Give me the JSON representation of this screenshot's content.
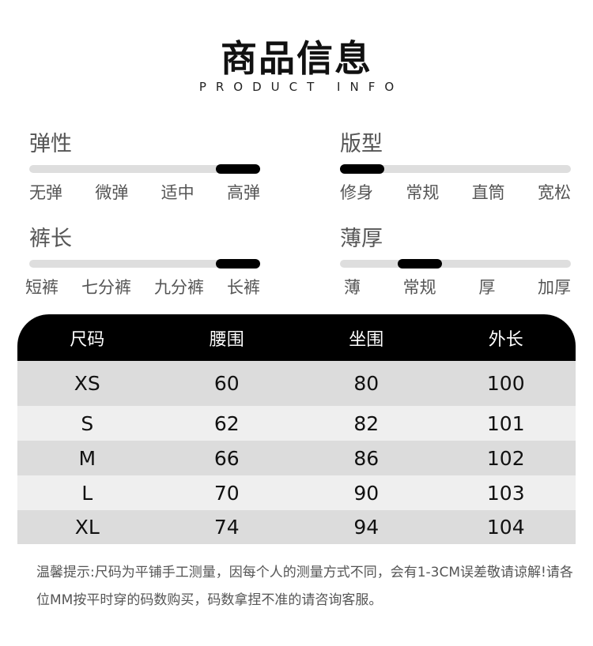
{
  "header": {
    "title": "商品信息",
    "subtitle": "PRODUCT INFO"
  },
  "attributes": [
    {
      "label": "弹性",
      "options": [
        "无弹",
        "微弹",
        "适中",
        "高弹"
      ],
      "selected": 3
    },
    {
      "label": "版型",
      "options": [
        "修身",
        "常规",
        "直筒",
        "宽松"
      ],
      "selected": 0
    },
    {
      "label": "裤长",
      "options": [
        "短裤",
        "七分裤",
        "九分裤",
        "长裤"
      ],
      "selected": 3
    },
    {
      "label": "薄厚",
      "options": [
        "薄",
        "常规",
        "厚",
        "加厚"
      ],
      "selected": 1
    }
  ],
  "size_table": {
    "headers": [
      "尺码",
      "腰围",
      "坐围",
      "外长"
    ],
    "rows": [
      [
        "XS",
        "60",
        "80",
        "100"
      ],
      [
        "S",
        "62",
        "82",
        "101"
      ],
      [
        "M",
        "66",
        "86",
        "102"
      ],
      [
        "L",
        "70",
        "90",
        "103"
      ],
      [
        "XL",
        "74",
        "94",
        "104"
      ]
    ]
  },
  "note": "温馨提示:尺码为平铺手工测量，因每个人的测量方式不同，会有1-3CM误差敬请谅解!请各位MM按平时穿的码数购买，码数拿捏不准的请咨询客服。",
  "colors": {
    "indicator": "#000000",
    "track": "#dedede",
    "header_bg": "#000000",
    "row_dark": "#dcdcdc",
    "row_light": "#efefef"
  }
}
